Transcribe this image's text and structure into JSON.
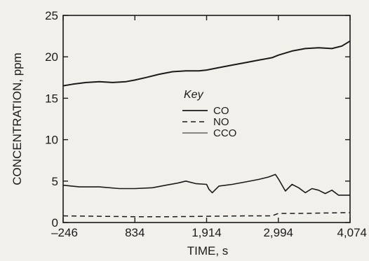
{
  "chart_data": {
    "type": "line",
    "xlabel": "TIME, s",
    "ylabel": "CONCENTRATION, ppm",
    "xlim": [
      -246,
      4074
    ],
    "ylim": [
      0,
      25
    ],
    "x_ticks": [
      -246,
      834,
      1914,
      2994,
      4074
    ],
    "x_tick_labels": [
      "–246",
      "834",
      "1,914",
      "2,994",
      "4,074"
    ],
    "y_ticks": [
      0,
      5,
      10,
      15,
      20,
      25
    ],
    "y_tick_labels": [
      "0",
      "5",
      "10",
      "15",
      "20",
      "25"
    ],
    "grid": false,
    "legend": {
      "title": "Key",
      "placement": "center"
    },
    "series": [
      {
        "name": "CO",
        "style": "solid",
        "color": "#1a1a1a",
        "x": [
          -246,
          -100,
          100,
          300,
          500,
          700,
          834,
          1000,
          1200,
          1400,
          1600,
          1800,
          1914,
          2100,
          2300,
          2500,
          2700,
          2900,
          2994,
          3200,
          3400,
          3600,
          3800,
          3950,
          4074
        ],
        "y": [
          16.5,
          16.7,
          16.9,
          17.0,
          16.9,
          17.0,
          17.2,
          17.5,
          17.9,
          18.2,
          18.3,
          18.3,
          18.4,
          18.7,
          19.0,
          19.3,
          19.6,
          19.9,
          20.2,
          20.7,
          21.0,
          21.1,
          21.0,
          21.3,
          21.9
        ]
      },
      {
        "name": "NO",
        "style": "dashed",
        "color": "#1a1a1a",
        "x": [
          -246,
          300,
          834,
          1400,
          1914,
          2500,
          2900,
          2994,
          3300,
          3700,
          4074
        ],
        "y": [
          0.8,
          0.75,
          0.7,
          0.7,
          0.75,
          0.8,
          0.8,
          1.1,
          1.1,
          1.15,
          1.2
        ]
      },
      {
        "name": "CCO",
        "style": "solid",
        "color": "#1a1a1a",
        "x": [
          -246,
          0,
          300,
          600,
          834,
          1100,
          1300,
          1500,
          1600,
          1750,
          1914,
          1950,
          2000,
          2100,
          2300,
          2500,
          2700,
          2850,
          2950,
          3000,
          3100,
          3200,
          3300,
          3400,
          3500,
          3600,
          3700,
          3800,
          3900,
          4074
        ],
        "y": [
          4.5,
          4.3,
          4.3,
          4.1,
          4.1,
          4.2,
          4.5,
          4.8,
          5.0,
          4.7,
          4.6,
          4.0,
          3.6,
          4.4,
          4.6,
          4.9,
          5.2,
          5.5,
          5.8,
          5.2,
          3.8,
          4.6,
          4.2,
          3.6,
          4.1,
          3.9,
          3.5,
          3.9,
          3.3,
          3.3
        ]
      }
    ]
  }
}
